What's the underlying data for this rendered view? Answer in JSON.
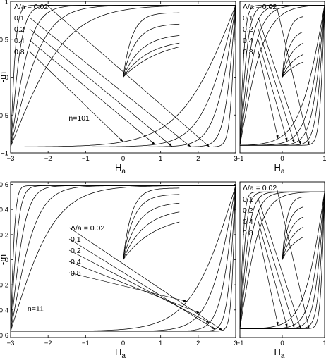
{
  "chart_data": [
    {
      "panel": "top-left",
      "type": "line",
      "xlabel_main": "H",
      "xlabel_sub": "a",
      "ylabel": "-m",
      "xlim": [
        -3,
        3
      ],
      "ylim": [
        -1,
        1
      ],
      "xticks": [
        -3,
        -2,
        -1,
        0,
        1,
        2,
        3
      ],
      "xtick_labels": [
        "−3",
        "−2",
        "−1",
        "0",
        "1",
        "2",
        "3"
      ],
      "yticks": [
        -1,
        -0.5,
        0,
        0.5,
        1
      ],
      "ytick_labels": [
        "−1",
        "−0.5",
        "0",
        "0.5",
        "1"
      ],
      "annotation": "n=101",
      "annotation_pos": [
        -1.45,
        -0.57
      ],
      "labels_side": "left",
      "series_names": [
        "Λ/a = 0.02",
        "0.1",
        "0.2",
        "0.4",
        "0.8"
      ],
      "hmax": 3,
      "m_sat": 0.95,
      "m_neg": -0.92,
      "widths": [
        0.15,
        0.3,
        0.55,
        0.9,
        1.5
      ],
      "virgin_end": [
        0.85,
        0.7,
        0.55,
        0.45,
        0.4
      ],
      "virgin_hw": 0.5
    },
    {
      "panel": "top-right",
      "type": "line",
      "xlabel_main": "H",
      "xlabel_sub": "a",
      "ylabel": "",
      "xlim": [
        -1,
        1
      ],
      "ylim": [
        -1,
        1
      ],
      "xticks": [
        -1,
        0,
        1
      ],
      "xtick_labels": [
        "−1",
        "0",
        "1"
      ],
      "yticks": [],
      "ytick_labels": [],
      "annotation": "",
      "labels_side": "left",
      "series_names": [
        "Λ/a = 0.02",
        "0.1",
        "0.2",
        "0.4",
        "0.8"
      ],
      "hmax": 1,
      "m_sat": 0.95,
      "m_neg": -0.9,
      "widths": [
        0.12,
        0.2,
        0.3,
        0.42,
        0.6
      ],
      "virgin_end": [
        0.8,
        0.6,
        0.45,
        0.3,
        0.2
      ],
      "virgin_hw": 0.5
    },
    {
      "panel": "bottom-left",
      "type": "line",
      "xlabel_main": "H",
      "xlabel_sub": "a",
      "ylabel": "-m",
      "xlim": [
        -3,
        3
      ],
      "ylim": [
        -0.62,
        0.62
      ],
      "xticks": [
        -3,
        -2,
        -1,
        0,
        1,
        2,
        3
      ],
      "xtick_labels": [
        "−3",
        "−2",
        "−1",
        "0",
        "1",
        "2",
        "3"
      ],
      "yticks": [
        -0.6,
        -0.4,
        -0.2,
        0,
        0.2,
        0.4,
        0.6
      ],
      "ytick_labels": [
        "−0.6",
        "−0.4",
        "−0.2",
        "0",
        "0.2",
        "0.4",
        "0.6"
      ],
      "annotation": "n=11",
      "annotation_pos": [
        -2.55,
        -0.41
      ],
      "labels_side": "right",
      "series_names": [
        "Λ/a = 0.02",
        "0.1",
        "0.2",
        "0.4",
        "0.8"
      ],
      "hmax": 3,
      "m_sat": 0.59,
      "m_neg": -0.57,
      "widths": [
        0.12,
        0.22,
        0.4,
        0.7,
        1.2
      ],
      "virgin_end": [
        0.57,
        0.52,
        0.45,
        0.38,
        0.3
      ],
      "virgin_hw": 0.5
    },
    {
      "panel": "bottom-right",
      "type": "line",
      "xlabel_main": "H",
      "xlabel_sub": "a",
      "ylabel": "",
      "xlim": [
        -1,
        1
      ],
      "ylim": [
        -0.62,
        0.62
      ],
      "xticks": [
        -1,
        0,
        1
      ],
      "xtick_labels": [
        "−1",
        "0",
        "1"
      ],
      "yticks": [],
      "ytick_labels": [],
      "annotation": "",
      "labels_side": "left",
      "series_names": [
        "Λ/a = 0.02",
        "0.1",
        "0.2",
        "0.4",
        "0.8"
      ],
      "hmax": 1,
      "m_sat": 0.54,
      "m_neg": -0.55,
      "widths": [
        0.1,
        0.16,
        0.24,
        0.34,
        0.5
      ],
      "virgin_end": [
        0.5,
        0.42,
        0.34,
        0.26,
        0.18
      ],
      "virgin_hw": 0.5
    }
  ]
}
